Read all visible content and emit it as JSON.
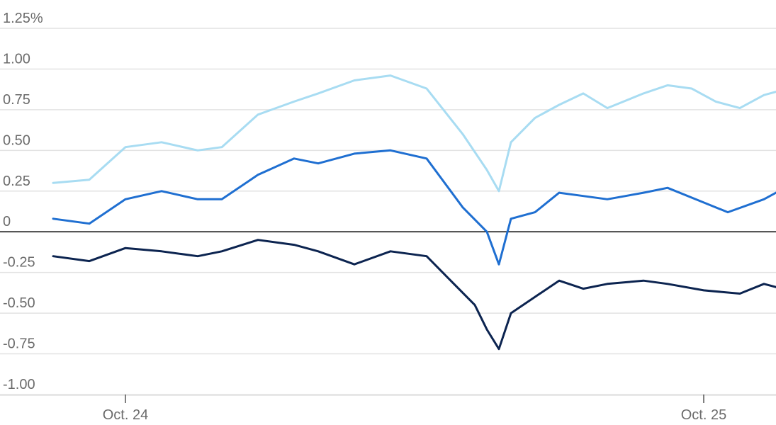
{
  "chart_data": {
    "type": "line",
    "title": "",
    "xlabel": "",
    "ylabel": "",
    "y_tick_labels": [
      "1.25%",
      "1.00",
      "0.75",
      "0.50",
      "0.25",
      "0",
      "-0.25",
      "-0.50",
      "-0.75",
      "-1.00"
    ],
    "y_tick_values": [
      1.25,
      1.0,
      0.75,
      0.5,
      0.25,
      0,
      -0.25,
      -0.5,
      -0.75,
      -1.0
    ],
    "ylim": [
      -1.1,
      1.3
    ],
    "x_tick_labels": [
      "Oct. 24",
      "Oct. 25"
    ],
    "x_tick_values": [
      "2023-10-24",
      "2023-10-25"
    ],
    "xlim": [
      "2023-10-23T21:00",
      "2023-10-25T03:00"
    ],
    "grid": true,
    "zero_line": true,
    "colors": {
      "light": "#a8dcf2",
      "medium": "#1f6fd1",
      "dark": "#0c2450",
      "grid": "#e2e2e2",
      "axis": "#000000",
      "tick_text": "#6b6b6b"
    },
    "series": [
      {
        "color_key": "light",
        "x": [
          "2023-10-23T21:00",
          "2023-10-23T22:30",
          "2023-10-24T00:00",
          "2023-10-24T01:30",
          "2023-10-24T03:00",
          "2023-10-24T04:00",
          "2023-10-24T05:30",
          "2023-10-24T07:00",
          "2023-10-24T08:00",
          "2023-10-24T09:30",
          "2023-10-24T11:00",
          "2023-10-24T12:30",
          "2023-10-24T14:00",
          "2023-10-24T15:00",
          "2023-10-24T15:30",
          "2023-10-24T16:00",
          "2023-10-24T17:00",
          "2023-10-24T18:00",
          "2023-10-24T19:00",
          "2023-10-24T20:00",
          "2023-10-24T21:30",
          "2023-10-24T22:30",
          "2023-10-24T23:30",
          "2023-10-25T00:30",
          "2023-10-25T01:30",
          "2023-10-25T02:30",
          "2023-10-25T03:00"
        ],
        "y": [
          0.3,
          0.32,
          0.52,
          0.55,
          0.5,
          0.52,
          0.72,
          0.8,
          0.85,
          0.93,
          0.96,
          0.88,
          0.6,
          0.38,
          0.25,
          0.55,
          0.7,
          0.78,
          0.85,
          0.76,
          0.85,
          0.9,
          0.88,
          0.8,
          0.76,
          0.84,
          0.86
        ]
      },
      {
        "color_key": "medium",
        "x": [
          "2023-10-23T21:00",
          "2023-10-23T22:30",
          "2023-10-24T00:00",
          "2023-10-24T01:30",
          "2023-10-24T03:00",
          "2023-10-24T04:00",
          "2023-10-24T05:30",
          "2023-10-24T07:00",
          "2023-10-24T08:00",
          "2023-10-24T09:30",
          "2023-10-24T11:00",
          "2023-10-24T12:30",
          "2023-10-24T14:00",
          "2023-10-24T15:00",
          "2023-10-24T15:30",
          "2023-10-24T16:00",
          "2023-10-24T17:00",
          "2023-10-24T18:00",
          "2023-10-24T19:00",
          "2023-10-24T20:00",
          "2023-10-24T21:30",
          "2023-10-24T22:30",
          "2023-10-25T00:00",
          "2023-10-25T01:00",
          "2023-10-25T02:30",
          "2023-10-25T03:00"
        ],
        "y": [
          0.08,
          0.05,
          0.2,
          0.25,
          0.2,
          0.2,
          0.35,
          0.45,
          0.42,
          0.48,
          0.5,
          0.45,
          0.15,
          0.0,
          -0.2,
          0.08,
          0.12,
          0.24,
          0.22,
          0.2,
          0.24,
          0.27,
          0.18,
          0.12,
          0.2,
          0.24
        ]
      },
      {
        "color_key": "dark",
        "x": [
          "2023-10-23T21:00",
          "2023-10-23T22:30",
          "2023-10-24T00:00",
          "2023-10-24T01:30",
          "2023-10-24T03:00",
          "2023-10-24T04:00",
          "2023-10-24T05:30",
          "2023-10-24T07:00",
          "2023-10-24T08:00",
          "2023-10-24T09:30",
          "2023-10-24T11:00",
          "2023-10-24T12:30",
          "2023-10-24T13:30",
          "2023-10-24T14:30",
          "2023-10-24T15:00",
          "2023-10-24T15:30",
          "2023-10-24T16:00",
          "2023-10-24T17:00",
          "2023-10-24T18:00",
          "2023-10-24T19:00",
          "2023-10-24T20:00",
          "2023-10-24T21:30",
          "2023-10-24T22:30",
          "2023-10-25T00:00",
          "2023-10-25T01:30",
          "2023-10-25T02:30",
          "2023-10-25T03:00"
        ],
        "y": [
          -0.15,
          -0.18,
          -0.1,
          -0.12,
          -0.15,
          -0.12,
          -0.05,
          -0.08,
          -0.12,
          -0.2,
          -0.12,
          -0.15,
          -0.3,
          -0.45,
          -0.6,
          -0.72,
          -0.5,
          -0.4,
          -0.3,
          -0.35,
          -0.32,
          -0.3,
          -0.32,
          -0.36,
          -0.38,
          -0.32,
          -0.34
        ]
      }
    ]
  }
}
